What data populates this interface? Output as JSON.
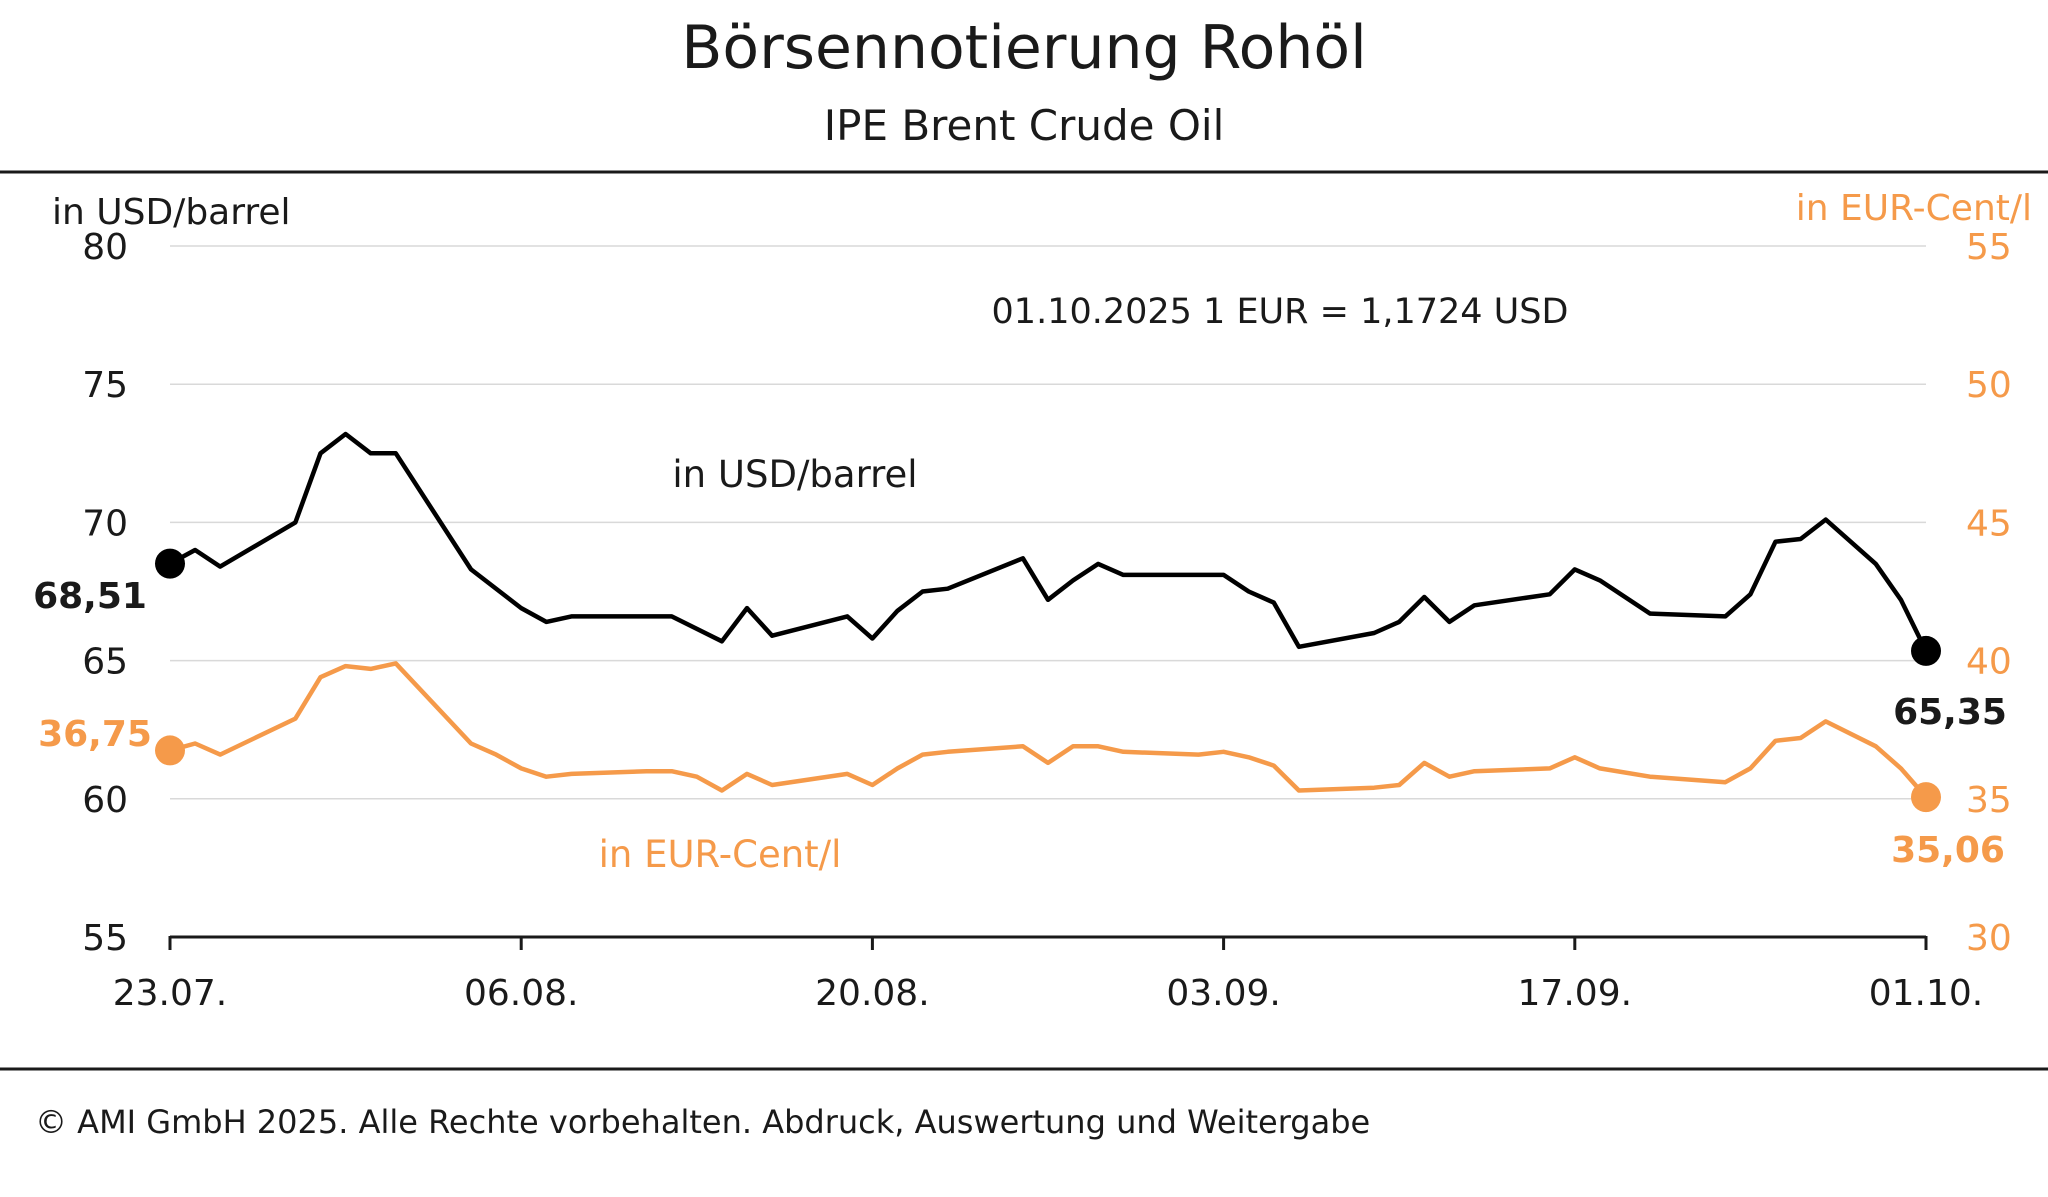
{
  "header": {
    "title": "Börsennotierung Rohöl",
    "subtitle": "IPE Brent Crude Oil"
  },
  "footer": {
    "copyright": "© AMI GmbH 2025.  Alle Rechte vorbehalten. Abdruck, Auswertung und Weitergabe"
  },
  "colors": {
    "usd": "#000000",
    "eur": "#f59a4a",
    "grid": "#d9d9d9"
  },
  "chart_data": {
    "type": "line",
    "title": "Börsennotierung Rohöl",
    "subtitle": "IPE Brent Crude Oil",
    "note": "01.10.2025  1 EUR = 1,1724 USD",
    "y_left": {
      "label": "in USD/barrel",
      "ylim": [
        55,
        80
      ],
      "ticks": [
        "55",
        "60",
        "65",
        "70",
        "75",
        "80"
      ]
    },
    "y_right": {
      "label": "in EUR-Cent/l",
      "ylim": [
        30,
        55
      ],
      "ticks": [
        "30",
        "35",
        "40",
        "45",
        "50",
        "55"
      ]
    },
    "x_ticks": [
      "23.07.",
      "06.08.",
      "20.08.",
      "03.09.",
      "17.09.",
      "01.10."
    ],
    "x_range": [
      "2025-07-23",
      "2025-10-01"
    ],
    "grid": true,
    "series": [
      {
        "name": "in USD/barrel",
        "axis": "left",
        "start_label": "68,51",
        "end_label": "65,35",
        "points": [
          [
            "2025-07-23",
            68.51
          ],
          [
            "2025-07-24",
            69.0
          ],
          [
            "2025-07-25",
            68.4
          ],
          [
            "2025-07-28",
            70.0
          ],
          [
            "2025-07-29",
            72.5
          ],
          [
            "2025-07-30",
            73.2
          ],
          [
            "2025-07-31",
            72.5
          ],
          [
            "2025-08-01",
            72.5
          ],
          [
            "2025-08-04",
            68.3
          ],
          [
            "2025-08-06",
            66.9
          ],
          [
            "2025-08-07",
            66.4
          ],
          [
            "2025-08-08",
            66.6
          ],
          [
            "2025-08-11",
            66.6
          ],
          [
            "2025-08-12",
            66.6
          ],
          [
            "2025-08-14",
            65.7
          ],
          [
            "2025-08-15",
            66.9
          ],
          [
            "2025-08-16",
            65.9
          ],
          [
            "2025-08-19",
            66.6
          ],
          [
            "2025-08-20",
            65.8
          ],
          [
            "2025-08-21",
            66.8
          ],
          [
            "2025-08-22",
            67.5
          ],
          [
            "2025-08-23",
            67.6
          ],
          [
            "2025-08-26",
            68.7
          ],
          [
            "2025-08-27",
            67.2
          ],
          [
            "2025-08-28",
            67.9
          ],
          [
            "2025-08-29",
            68.5
          ],
          [
            "2025-08-30",
            68.1
          ],
          [
            "2025-09-02",
            68.1
          ],
          [
            "2025-09-03",
            68.1
          ],
          [
            "2025-09-04",
            67.5
          ],
          [
            "2025-09-05",
            67.1
          ],
          [
            "2025-09-06",
            65.5
          ],
          [
            "2025-09-09",
            66.0
          ],
          [
            "2025-09-10",
            66.4
          ],
          [
            "2025-09-11",
            67.3
          ],
          [
            "2025-09-12",
            66.4
          ],
          [
            "2025-09-13",
            67.0
          ],
          [
            "2025-09-16",
            67.4
          ],
          [
            "2025-09-17",
            68.3
          ],
          [
            "2025-09-18",
            67.9
          ],
          [
            "2025-09-19",
            67.3
          ],
          [
            "2025-09-20",
            66.7
          ],
          [
            "2025-09-23",
            66.6
          ],
          [
            "2025-09-24",
            67.4
          ],
          [
            "2025-09-25",
            69.3
          ],
          [
            "2025-09-26",
            69.4
          ],
          [
            "2025-09-27",
            70.1
          ],
          [
            "2025-09-29",
            68.5
          ],
          [
            "2025-09-30",
            67.2
          ],
          [
            "2025-10-01",
            65.35
          ]
        ]
      },
      {
        "name": "in EUR-Cent/l",
        "axis": "right",
        "start_label": "36,75",
        "end_label": "35,06",
        "points": [
          [
            "2025-07-23",
            36.75
          ],
          [
            "2025-07-24",
            37.0
          ],
          [
            "2025-07-25",
            36.6
          ],
          [
            "2025-07-28",
            37.9
          ],
          [
            "2025-07-29",
            39.4
          ],
          [
            "2025-07-30",
            39.8
          ],
          [
            "2025-07-31",
            39.7
          ],
          [
            "2025-08-01",
            39.9
          ],
          [
            "2025-08-04",
            37.0
          ],
          [
            "2025-08-05",
            36.6
          ],
          [
            "2025-08-06",
            36.1
          ],
          [
            "2025-08-07",
            35.8
          ],
          [
            "2025-08-08",
            35.9
          ],
          [
            "2025-08-11",
            36.0
          ],
          [
            "2025-08-12",
            36.0
          ],
          [
            "2025-08-13",
            35.8
          ],
          [
            "2025-08-14",
            35.3
          ],
          [
            "2025-08-15",
            35.9
          ],
          [
            "2025-08-16",
            35.5
          ],
          [
            "2025-08-19",
            35.9
          ],
          [
            "2025-08-20",
            35.5
          ],
          [
            "2025-08-21",
            36.1
          ],
          [
            "2025-08-22",
            36.6
          ],
          [
            "2025-08-23",
            36.7
          ],
          [
            "2025-08-26",
            36.9
          ],
          [
            "2025-08-27",
            36.3
          ],
          [
            "2025-08-28",
            36.9
          ],
          [
            "2025-08-29",
            36.9
          ],
          [
            "2025-08-30",
            36.7
          ],
          [
            "2025-09-02",
            36.6
          ],
          [
            "2025-09-03",
            36.7
          ],
          [
            "2025-09-04",
            36.5
          ],
          [
            "2025-09-05",
            36.2
          ],
          [
            "2025-09-06",
            35.3
          ],
          [
            "2025-09-09",
            35.4
          ],
          [
            "2025-09-10",
            35.5
          ],
          [
            "2025-09-11",
            36.3
          ],
          [
            "2025-09-12",
            35.8
          ],
          [
            "2025-09-13",
            36.0
          ],
          [
            "2025-09-16",
            36.1
          ],
          [
            "2025-09-17",
            36.5
          ],
          [
            "2025-09-18",
            36.1
          ],
          [
            "2025-09-20",
            35.8
          ],
          [
            "2025-09-23",
            35.6
          ],
          [
            "2025-09-24",
            36.1
          ],
          [
            "2025-09-25",
            37.1
          ],
          [
            "2025-09-26",
            37.2
          ],
          [
            "2025-09-27",
            37.8
          ],
          [
            "2025-09-29",
            36.9
          ],
          [
            "2025-09-30",
            36.1
          ],
          [
            "2025-10-01",
            35.06
          ]
        ]
      }
    ]
  }
}
